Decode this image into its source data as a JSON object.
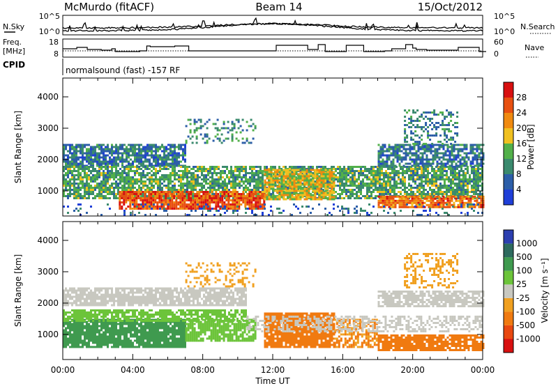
{
  "header": {
    "radar": "McMurdo (fitACF)",
    "beam": "Beam 14",
    "date": "15/Oct/2012"
  },
  "noise_panel": {
    "left_label": "N.Sky",
    "left_ticks": [
      "10^5",
      "10^0"
    ],
    "right_label": "N.Search",
    "right_ticks": [
      "10^5",
      "10^0"
    ]
  },
  "freq_panel": {
    "left_label_1": "Freq.",
    "left_label_2": "[MHz]",
    "left_ticks": [
      "18",
      "8"
    ],
    "right_label": "Nave",
    "right_ticks": [
      "60",
      "0"
    ]
  },
  "cpid": {
    "label": "CPID",
    "text": "normalsound (fast) -157 RF"
  },
  "colors": {
    "power": [
      "#1f3fd8",
      "#2c5ea8",
      "#3b8a6e",
      "#52b04a",
      "#f0c020",
      "#f08a10",
      "#e85010",
      "#d81010"
    ],
    "velocity": [
      "#2c3fb0",
      "#2d6a5e",
      "#3f9a4f",
      "#6cc43a",
      "#c8c8c0",
      "#f0a020",
      "#f07a10",
      "#e84810",
      "#d81010"
    ],
    "ground_scatter": "#c0c0b8"
  },
  "chart_data": [
    {
      "type": "heatmap",
      "title": "Power",
      "xlabel": "",
      "ylabel": "Slant Range [km]",
      "x_ticks": [
        "00:00",
        "04:00",
        "08:00",
        "12:00",
        "16:00",
        "20:00",
        "00:00"
      ],
      "y_ticks": [
        1000,
        2000,
        3000,
        4000
      ],
      "ylim": [
        200,
        4600
      ],
      "xlim_hours": [
        0,
        24
      ],
      "colorbar": {
        "label": "Power [dB]",
        "ticks": [
          "4",
          "8",
          "12",
          "16",
          "20",
          "24",
          "28"
        ],
        "range": [
          0,
          32
        ]
      },
      "regions": [
        {
          "t0": 0.0,
          "t1": 7.0,
          "r0": 1800,
          "r1": 2500,
          "value": 8,
          "density": 0.8
        },
        {
          "t0": 0.0,
          "t1": 24.0,
          "r0": 750,
          "r1": 1800,
          "value": 12,
          "density": 0.78
        },
        {
          "t0": 3.2,
          "t1": 11.5,
          "r0": 450,
          "r1": 1000,
          "value": 26,
          "density": 0.85
        },
        {
          "t0": 11.5,
          "t1": 15.5,
          "r0": 750,
          "r1": 1700,
          "value": 18,
          "density": 0.8
        },
        {
          "t0": 18.0,
          "t1": 24.0,
          "r0": 450,
          "r1": 850,
          "value": 24,
          "density": 0.85
        },
        {
          "t0": 18.0,
          "t1": 24.0,
          "r0": 1800,
          "r1": 2500,
          "value": 8,
          "density": 0.72
        },
        {
          "t0": 7.0,
          "t1": 11.0,
          "r0": 2500,
          "r1": 3300,
          "value": 10,
          "density": 0.25
        },
        {
          "t0": 19.5,
          "t1": 22.5,
          "r0": 2500,
          "r1": 3600,
          "value": 9,
          "density": 0.35
        },
        {
          "t0": 0.0,
          "t1": 24.0,
          "r0": 200,
          "r1": 600,
          "value": 6,
          "density": 0.15
        }
      ]
    },
    {
      "type": "heatmap",
      "title": "Velocity",
      "xlabel": "Time UT",
      "ylabel": "Slant Range [km]",
      "x_ticks": [
        "00:00",
        "04:00",
        "08:00",
        "12:00",
        "16:00",
        "20:00",
        "00:00"
      ],
      "y_ticks": [
        1000,
        2000,
        3000,
        4000
      ],
      "ylim": [
        200,
        4600
      ],
      "xlim_hours": [
        0,
        24
      ],
      "colorbar": {
        "label": "Velocity [m s⁻¹]",
        "ticks": [
          "1000",
          "500",
          "100",
          "25",
          "-25",
          "-100",
          "-500",
          "-1000"
        ],
        "range": [
          -1200,
          1200
        ]
      },
      "regions": [
        {
          "t0": 0.0,
          "t1": 7.0,
          "r0": 600,
          "r1": 1500,
          "value": 300,
          "density": 0.9
        },
        {
          "t0": 0.0,
          "t1": 10.5,
          "r0": 1400,
          "r1": 1800,
          "value": 60,
          "density": 0.75
        },
        {
          "t0": 0.0,
          "t1": 10.5,
          "r0": 1900,
          "r1": 2500,
          "value": 0,
          "density": 0.8
        },
        {
          "t0": 7.0,
          "t1": 11.0,
          "r0": 800,
          "r1": 1500,
          "value": 60,
          "density": 0.75
        },
        {
          "t0": 11.5,
          "t1": 15.5,
          "r0": 600,
          "r1": 1700,
          "value": -200,
          "density": 0.9
        },
        {
          "t0": 15.5,
          "t1": 18.0,
          "r0": 600,
          "r1": 1500,
          "value": -100,
          "density": 0.55
        },
        {
          "t0": 18.0,
          "t1": 24.0,
          "r0": 500,
          "r1": 1000,
          "value": -300,
          "density": 0.85
        },
        {
          "t0": 18.0,
          "t1": 24.0,
          "r0": 1900,
          "r1": 2400,
          "value": 0,
          "density": 0.75
        },
        {
          "t0": 10.5,
          "t1": 24.0,
          "r0": 1100,
          "r1": 1600,
          "value": 0,
          "density": 0.45
        },
        {
          "t0": 7.0,
          "t1": 11.0,
          "r0": 2500,
          "r1": 3300,
          "value": -60,
          "density": 0.3
        },
        {
          "t0": 19.5,
          "t1": 22.5,
          "r0": 2500,
          "r1": 3600,
          "value": -50,
          "density": 0.35
        }
      ]
    }
  ]
}
